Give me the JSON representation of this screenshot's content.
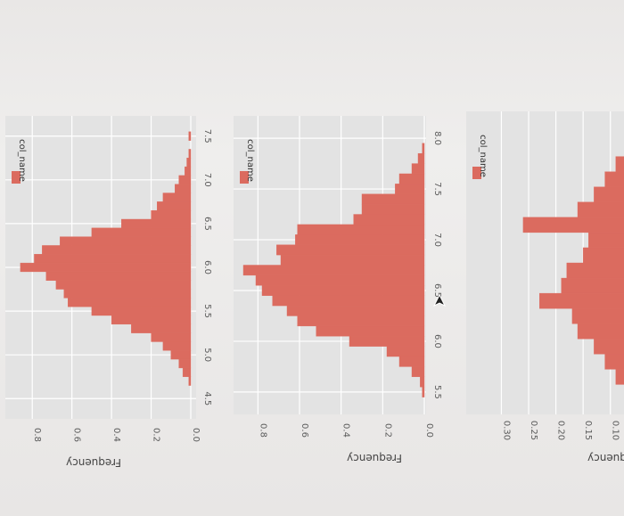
{
  "colors": {
    "bar": "#db6b5f",
    "panel_bg": "#e3e3e3",
    "grid": "#ffffff",
    "text": "#5a5a5a",
    "page_bg": "#ecebea"
  },
  "chart_data": [
    {
      "type": "bar",
      "orientation": "histogram rotated 90 degrees clockwise",
      "legend": {
        "label": "col_name",
        "placement": "top-left"
      },
      "ylabel": "Frequency",
      "y_ticks": [
        "0.0",
        "0.2",
        "0.4",
        "0.6",
        "0.8"
      ],
      "x_ticks": [
        "4.5",
        "5.0",
        "5.5",
        "6.0",
        "6.5",
        "7.0",
        "7.5"
      ],
      "xlim": [
        4.35,
        7.65
      ],
      "ylim": [
        0,
        0.9
      ],
      "bin_width": 0.1,
      "x": [
        4.6,
        4.7,
        4.8,
        4.9,
        5.0,
        5.1,
        5.2,
        5.3,
        5.4,
        5.5,
        5.6,
        5.7,
        5.8,
        5.9,
        6.0,
        6.1,
        6.2,
        6.3,
        6.4,
        6.5,
        6.6,
        6.7,
        6.8,
        6.9,
        7.0,
        7.1,
        7.2,
        7.3,
        7.4,
        7.5
      ],
      "values": [
        0.0,
        0.01,
        0.04,
        0.06,
        0.1,
        0.14,
        0.2,
        0.3,
        0.4,
        0.5,
        0.62,
        0.64,
        0.68,
        0.73,
        0.86,
        0.79,
        0.75,
        0.66,
        0.5,
        0.35,
        0.2,
        0.17,
        0.14,
        0.08,
        0.06,
        0.03,
        0.02,
        0.01,
        0.0,
        0.01
      ]
    },
    {
      "type": "bar",
      "orientation": "histogram rotated 90 degrees clockwise",
      "legend": {
        "label": "col_name",
        "placement": "top-left"
      },
      "ylabel": "Frequency",
      "y_ticks": [
        "0.0",
        "0.2",
        "0.4",
        "0.6",
        "0.8"
      ],
      "x_ticks": [
        "5.5",
        "6.0",
        "6.5",
        "7.0",
        "7.5",
        "8.0"
      ],
      "xlim": [
        5.35,
        8.15
      ],
      "ylim": [
        0,
        0.9
      ],
      "bin_width": 0.1,
      "x": [
        5.5,
        5.6,
        5.7,
        5.8,
        5.9,
        6.0,
        6.1,
        6.2,
        6.3,
        6.4,
        6.5,
        6.6,
        6.7,
        6.8,
        6.9,
        7.0,
        7.1,
        7.2,
        7.3,
        7.4,
        7.5,
        7.6,
        7.7,
        7.8,
        7.9,
        8.0
      ],
      "values": [
        0.01,
        0.02,
        0.06,
        0.12,
        0.18,
        0.36,
        0.52,
        0.61,
        0.66,
        0.73,
        0.78,
        0.81,
        0.87,
        0.69,
        0.71,
        0.62,
        0.61,
        0.34,
        0.3,
        0.3,
        0.14,
        0.12,
        0.06,
        0.03,
        0.01,
        0.0
      ]
    },
    {
      "type": "bar",
      "orientation": "histogram rotated 90 degrees clockwise (cropped)",
      "legend": {
        "label": "col_name",
        "placement": "top-left"
      },
      "ylabel": "Frequency",
      "y_ticks": [
        "0.10",
        "0.15",
        "0.20",
        "0.25",
        "0.30"
      ],
      "x_ticks": [],
      "xlim": [
        6.0,
        7.9
      ],
      "ylim": [
        0.075,
        0.34
      ],
      "bin_width": 0.1,
      "x": [
        6.2,
        6.3,
        6.4,
        6.5,
        6.6,
        6.7,
        6.8,
        6.9,
        7.0,
        7.1,
        7.2,
        7.3,
        7.4,
        7.5,
        7.6
      ],
      "values": [
        0.09,
        0.11,
        0.13,
        0.16,
        0.17,
        0.23,
        0.19,
        0.18,
        0.15,
        0.14,
        0.26,
        0.16,
        0.13,
        0.11,
        0.09
      ]
    }
  ]
}
